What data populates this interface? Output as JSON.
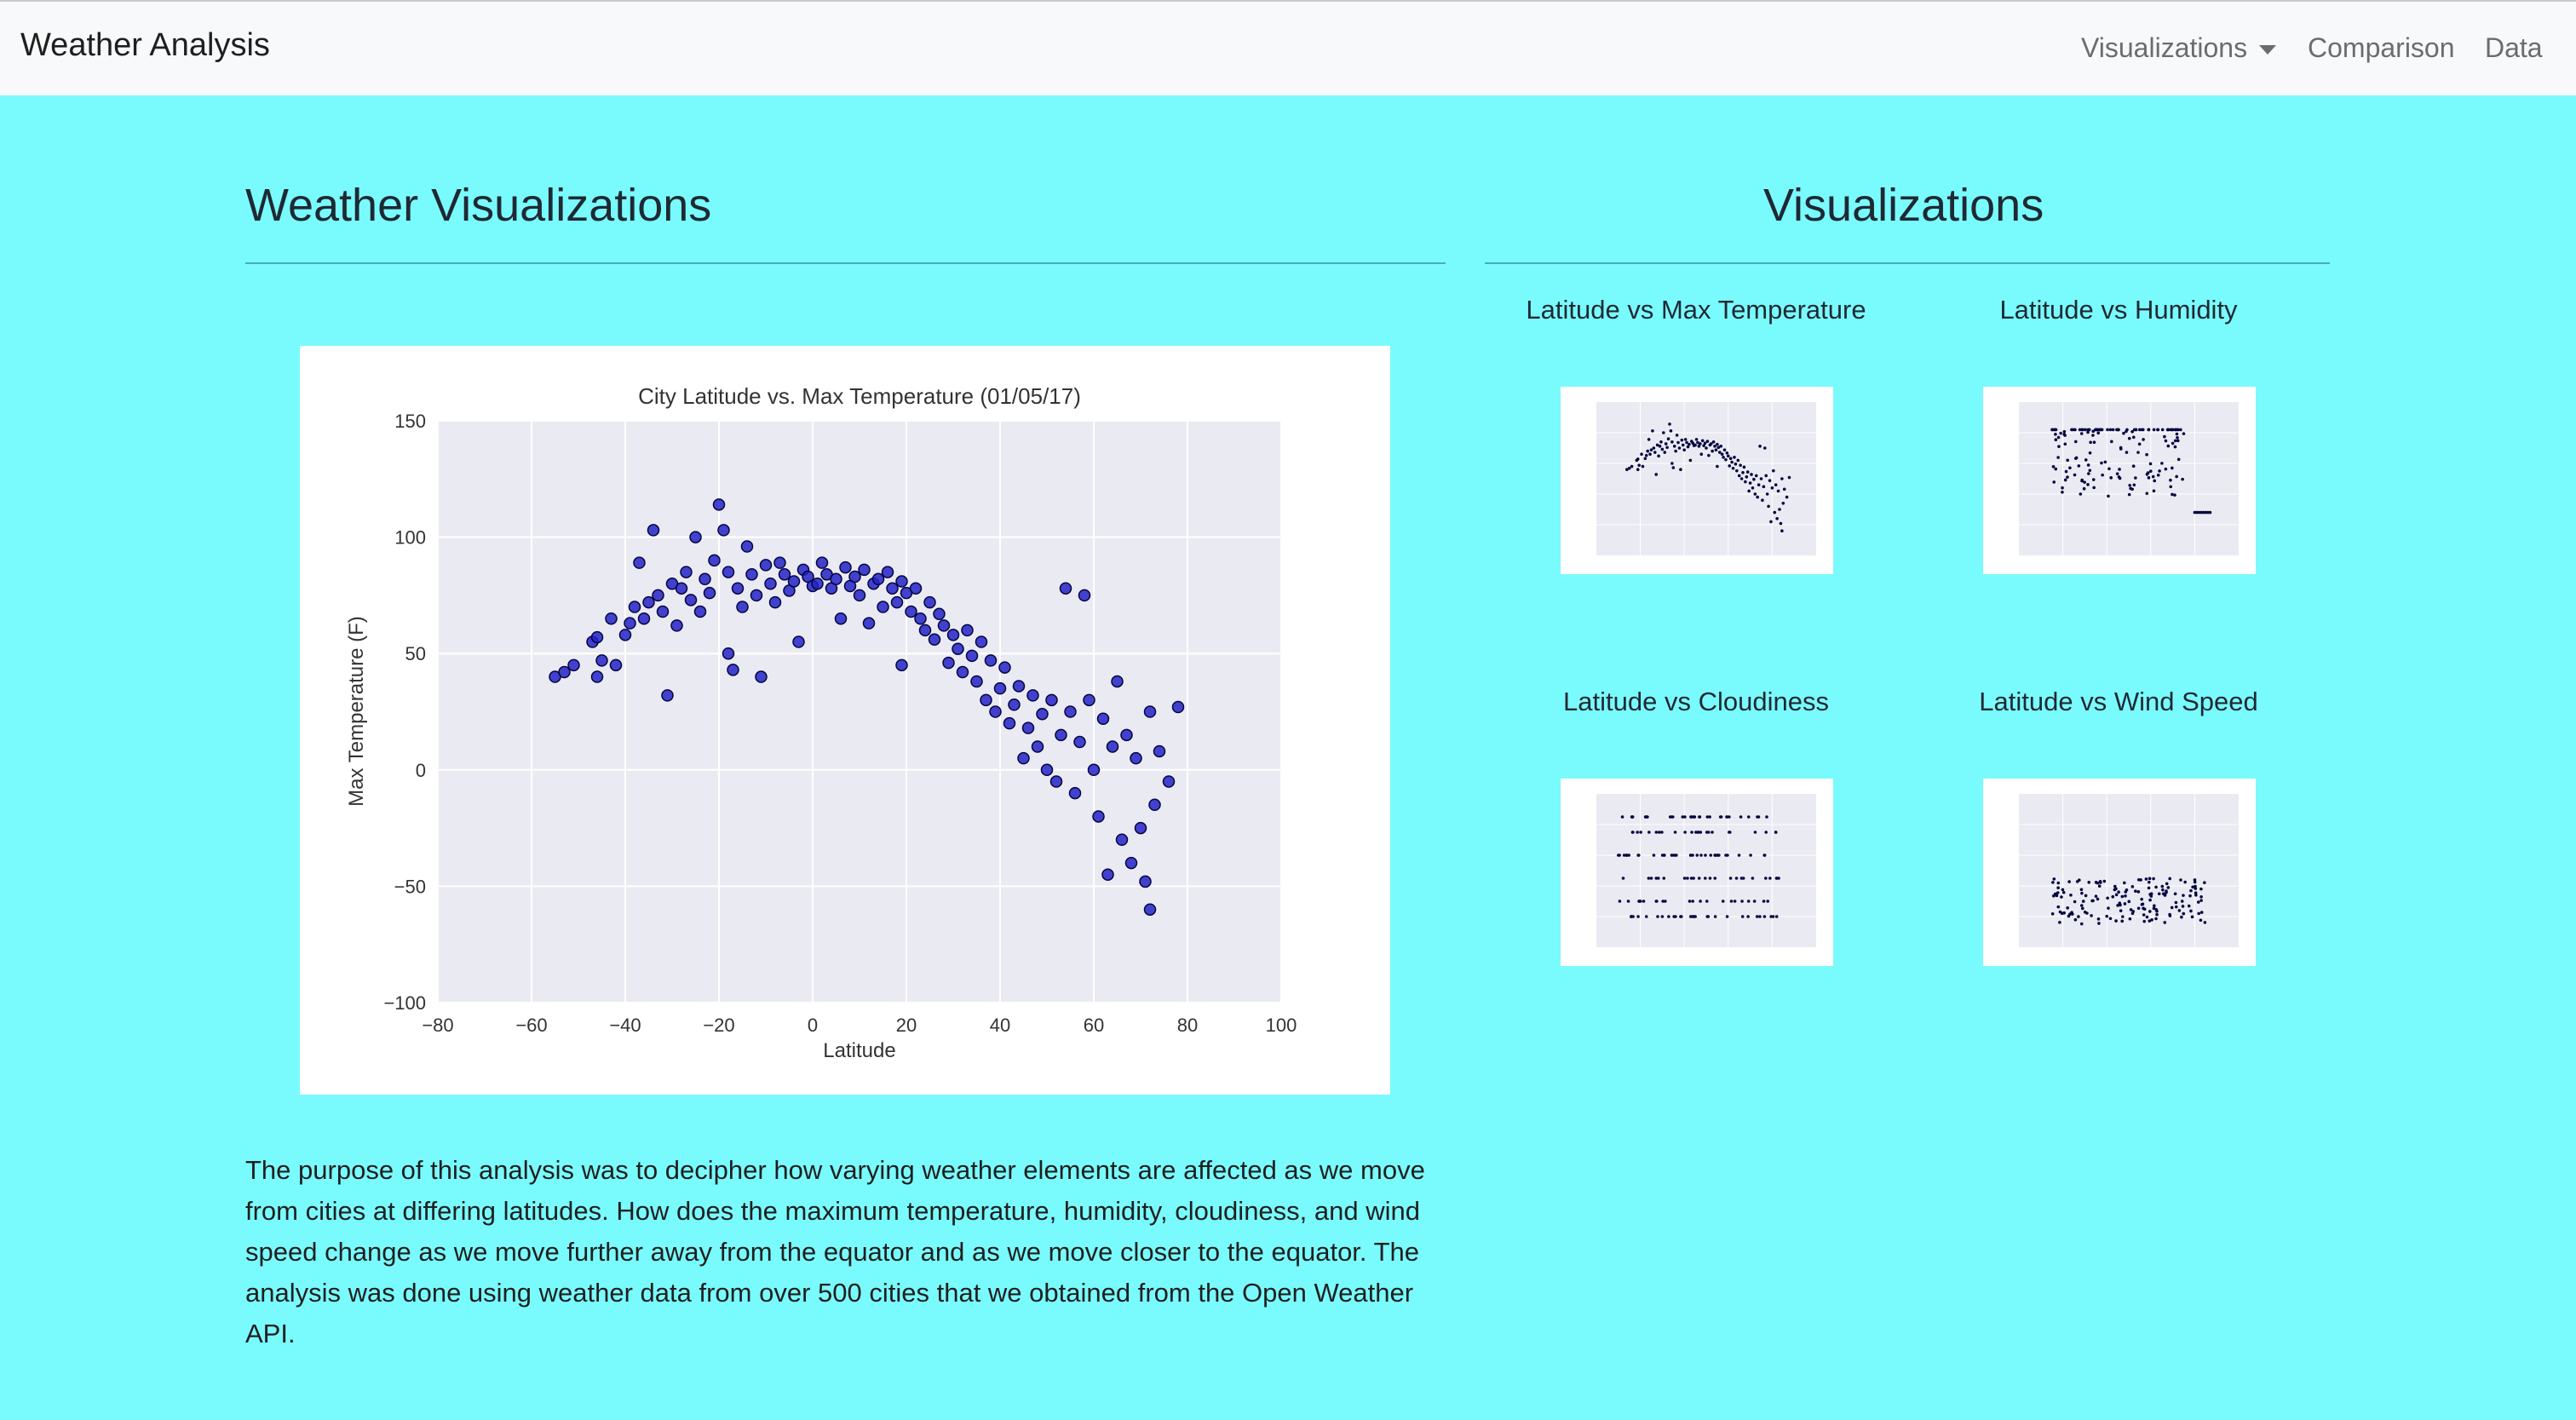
{
  "navbar": {
    "brand": "Weather Analysis",
    "items": [
      {
        "label": "Visualizations",
        "dropdown": true
      },
      {
        "label": "Comparison"
      },
      {
        "label": "Data"
      }
    ]
  },
  "left": {
    "heading": "Weather Visualizations",
    "description": "The purpose of this analysis was to decipher how varying weather elements are affected as we move from cities at differing latitudes. How does the maximum temperature, humidity, cloudiness, and wind speed change as we move further away from the equator and as we move closer to the equator. The analysis was done using weather data from over 500 cities that we obtained from the Open Weather API."
  },
  "right": {
    "heading": "Visualizations",
    "thumbnails": [
      {
        "title": "Latitude vs Max Temperature",
        "icon": "scatter-plot-thumbnail"
      },
      {
        "title": "Latitude vs Humidity",
        "icon": "scatter-plot-thumbnail"
      },
      {
        "title": "Latitude vs Cloudiness",
        "icon": "scatter-plot-thumbnail"
      },
      {
        "title": "Latitude vs Wind Speed",
        "icon": "scatter-plot-thumbnail"
      }
    ]
  },
  "colors": {
    "page_background": "#79fbfd",
    "navbar_background": "#f8f9fa",
    "plot_background": "#eaeaf2",
    "marker_fill": "#2323c8",
    "marker_edge": "#050540"
  },
  "chart_data": {
    "type": "scatter",
    "title": "City Latitude vs. Max Temperature (01/05/17)",
    "xlabel": "Latitude",
    "ylabel": "Max Temperature (F)",
    "xlim": [
      -80,
      100
    ],
    "ylim": [
      -100,
      150
    ],
    "xticks": [
      -80,
      -60,
      -40,
      -20,
      0,
      20,
      40,
      60,
      80,
      100
    ],
    "yticks": [
      -100,
      -50,
      0,
      50,
      100,
      150
    ],
    "grid": true,
    "points": [
      [
        -55,
        40
      ],
      [
        -53,
        42
      ],
      [
        -51,
        45
      ],
      [
        -47,
        55
      ],
      [
        -46,
        57
      ],
      [
        -46,
        40
      ],
      [
        -45,
        47
      ],
      [
        -43,
        65
      ],
      [
        -42,
        45
      ],
      [
        -40,
        58
      ],
      [
        -39,
        63
      ],
      [
        -38,
        70
      ],
      [
        -37,
        89
      ],
      [
        -36,
        65
      ],
      [
        -35,
        72
      ],
      [
        -34,
        103
      ],
      [
        -33,
        75
      ],
      [
        -32,
        68
      ],
      [
        -31,
        32
      ],
      [
        -30,
        80
      ],
      [
        -29,
        62
      ],
      [
        -28,
        78
      ],
      [
        -27,
        85
      ],
      [
        -26,
        73
      ],
      [
        -25,
        100
      ],
      [
        -24,
        68
      ],
      [
        -23,
        82
      ],
      [
        -22,
        76
      ],
      [
        -21,
        90
      ],
      [
        -20,
        114
      ],
      [
        -19,
        103
      ],
      [
        -18,
        85
      ],
      [
        -18,
        50
      ],
      [
        -17,
        43
      ],
      [
        -16,
        78
      ],
      [
        -15,
        70
      ],
      [
        -14,
        96
      ],
      [
        -13,
        84
      ],
      [
        -12,
        75
      ],
      [
        -11,
        40
      ],
      [
        -10,
        88
      ],
      [
        -9,
        80
      ],
      [
        -8,
        72
      ],
      [
        -7,
        89
      ],
      [
        -6,
        84
      ],
      [
        -5,
        77
      ],
      [
        -4,
        81
      ],
      [
        -3,
        55
      ],
      [
        -2,
        86
      ],
      [
        -1,
        83
      ],
      [
        0,
        79
      ],
      [
        1,
        80
      ],
      [
        2,
        89
      ],
      [
        3,
        84
      ],
      [
        4,
        78
      ],
      [
        5,
        82
      ],
      [
        6,
        65
      ],
      [
        7,
        87
      ],
      [
        8,
        79
      ],
      [
        9,
        83
      ],
      [
        10,
        75
      ],
      [
        11,
        86
      ],
      [
        12,
        63
      ],
      [
        13,
        80
      ],
      [
        14,
        82
      ],
      [
        15,
        70
      ],
      [
        16,
        85
      ],
      [
        17,
        78
      ],
      [
        18,
        72
      ],
      [
        19,
        81
      ],
      [
        19,
        45
      ],
      [
        20,
        76
      ],
      [
        21,
        68
      ],
      [
        22,
        78
      ],
      [
        23,
        65
      ],
      [
        24,
        60
      ],
      [
        25,
        72
      ],
      [
        26,
        56
      ],
      [
        27,
        67
      ],
      [
        28,
        62
      ],
      [
        29,
        46
      ],
      [
        30,
        58
      ],
      [
        31,
        52
      ],
      [
        32,
        42
      ],
      [
        33,
        60
      ],
      [
        34,
        49
      ],
      [
        35,
        38
      ],
      [
        36,
        55
      ],
      [
        37,
        30
      ],
      [
        38,
        47
      ],
      [
        39,
        25
      ],
      [
        40,
        35
      ],
      [
        41,
        44
      ],
      [
        42,
        20
      ],
      [
        43,
        28
      ],
      [
        44,
        36
      ],
      [
        45,
        5
      ],
      [
        46,
        18
      ],
      [
        47,
        32
      ],
      [
        48,
        10
      ],
      [
        49,
        24
      ],
      [
        50,
        0
      ],
      [
        51,
        30
      ],
      [
        52,
        -5
      ],
      [
        53,
        15
      ],
      [
        54,
        78
      ],
      [
        55,
        25
      ],
      [
        56,
        -10
      ],
      [
        57,
        12
      ],
      [
        58,
        75
      ],
      [
        59,
        30
      ],
      [
        60,
        0
      ],
      [
        61,
        -20
      ],
      [
        62,
        22
      ],
      [
        63,
        -45
      ],
      [
        64,
        10
      ],
      [
        65,
        38
      ],
      [
        66,
        -30
      ],
      [
        67,
        15
      ],
      [
        68,
        -40
      ],
      [
        69,
        5
      ],
      [
        70,
        -25
      ],
      [
        71,
        -48
      ],
      [
        72,
        25
      ],
      [
        72,
        -60
      ],
      [
        73,
        -15
      ],
      [
        74,
        8
      ],
      [
        76,
        -5
      ],
      [
        78,
        27
      ]
    ]
  }
}
